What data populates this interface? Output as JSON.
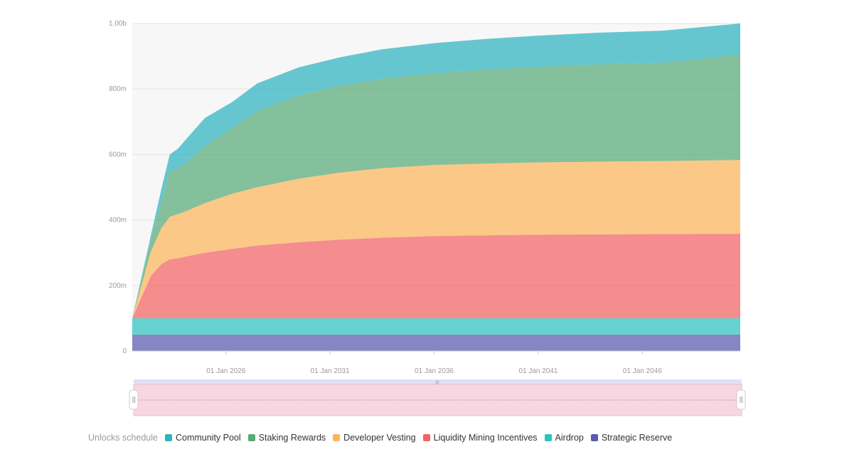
{
  "chart_data": {
    "type": "area",
    "stacked": true,
    "y_ticks": [
      "0",
      "200m",
      "400m",
      "600m",
      "800m",
      "1.00b"
    ],
    "ylim": [
      0,
      1000
    ],
    "y_unit": "millions",
    "x_ticks": [
      "01 Jan 2026",
      "01 Jan 2031",
      "01 Jan 2036",
      "01 Jan 2041",
      "01 Jan 2046"
    ],
    "xlim": [
      2021.5,
      2050.7
    ],
    "grid": true,
    "legend_title": "Unlocks schedule",
    "legend_position": "bottom-left",
    "x": [
      2021.5,
      2022.4,
      2022.9,
      2023.3,
      2023.7,
      2024.2,
      2025.0,
      2026.3,
      2027.5,
      2029.5,
      2031.5,
      2033.5,
      2036.0,
      2038.5,
      2041.0,
      2044.0,
      2047.0,
      2050.7
    ],
    "series": [
      {
        "name": "Strategic Reserve",
        "color": "#5a5aaf",
        "values": [
          50,
          50,
          50,
          50,
          50,
          50,
          50,
          50,
          50,
          50,
          50,
          50,
          50,
          50,
          50,
          50,
          50,
          50
        ]
      },
      {
        "name": "Airdrop",
        "color": "#2cc4c0",
        "values": [
          50,
          50,
          50,
          50,
          50,
          50,
          50,
          50,
          50,
          50,
          50,
          50,
          50,
          50,
          50,
          50,
          50,
          50
        ]
      },
      {
        "name": "Liquidity Mining Incentives",
        "color": "#f46265",
        "values": [
          0,
          130,
          165,
          180,
          183,
          190,
          200,
          212,
          222,
          232,
          240,
          246,
          251,
          253,
          255,
          256,
          257,
          258
        ]
      },
      {
        "name": "Developer Vesting",
        "color": "#fdb55b",
        "values": [
          0,
          75,
          110,
          130,
          135,
          140,
          152,
          168,
          178,
          194,
          205,
          212,
          217,
          219,
          221,
          222,
          223,
          225
        ]
      },
      {
        "name": "Staking Rewards",
        "color": "#58aa77",
        "values": [
          0,
          40,
          80,
          140,
          140,
          150,
          175,
          200,
          232,
          255,
          265,
          273,
          280,
          287,
          292,
          297,
          300,
          322
        ]
      },
      {
        "name": "Community Pool",
        "color": "#2eb3c0",
        "values": [
          0,
          10,
          40,
          50,
          60,
          75,
          85,
          80,
          85,
          85,
          87,
          90,
          92,
          94,
          95,
          97,
          98,
          95
        ]
      }
    ],
    "legend_order": [
      "Community Pool",
      "Staking Rewards",
      "Developer Vesting",
      "Liquidity Mining Incentives",
      "Airdrop",
      "Strategic Reserve"
    ]
  },
  "navigator": {
    "handle_label": "|||"
  }
}
